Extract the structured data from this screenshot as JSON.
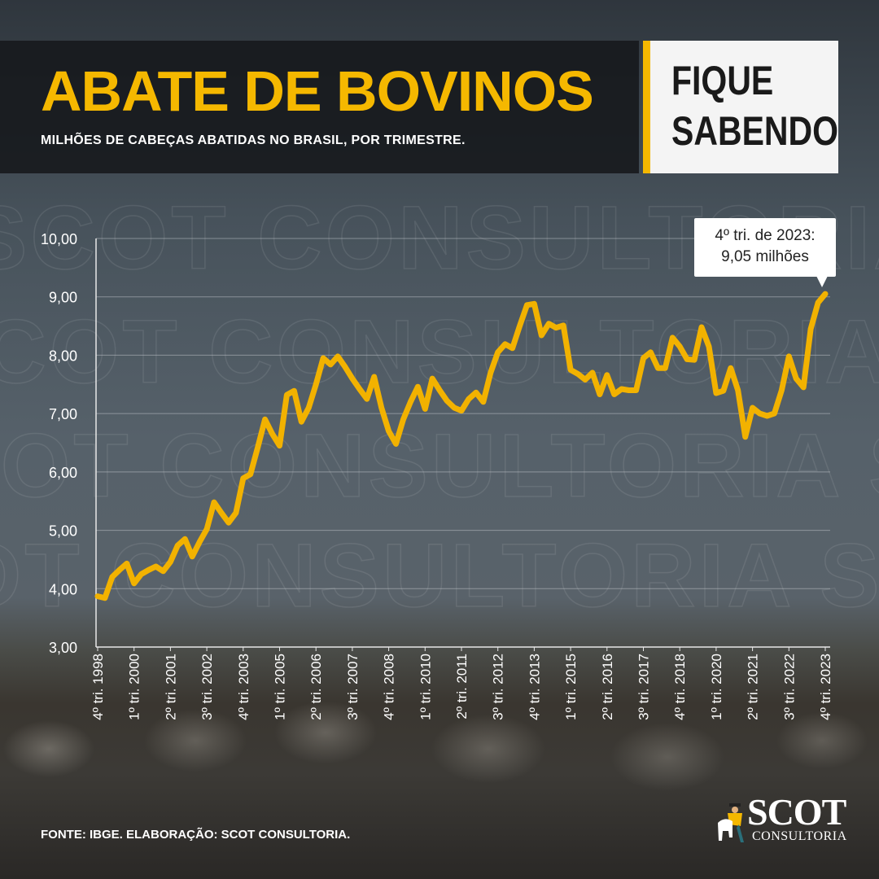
{
  "header": {
    "title": "ABATE DE BOVINOS",
    "subtitle": "MILHÕES DE CABEÇAS ABATIDAS NO BRASIL, POR TRIMESTRE.",
    "badge_line1": "FIQUE",
    "badge_line2": "SABENDO"
  },
  "annotation": {
    "line1": "4º tri. de 2023:",
    "line2": "9,05 milhões"
  },
  "footer": {
    "source": "FONTE: IBGE. ELABORAÇÃO: SCOT CONSULTORIA."
  },
  "logo": {
    "text": "SCOT",
    "subtext": "CONSULTORIA"
  },
  "watermark": "SCOT CONSULTORIA",
  "colors": {
    "accent": "#f5b800",
    "line": "#f2b200",
    "grid": "#9aa2a8",
    "text": "#ffffff"
  },
  "chart_data": {
    "type": "line",
    "title": "ABATE DE BOVINOS",
    "subtitle": "MILHÕES DE CABEÇAS ABATIDAS NO BRASIL, POR TRIMESTRE.",
    "ylim": [
      3,
      10
    ],
    "y_ticks": [
      "3,00",
      "4,00",
      "5,00",
      "6,00",
      "7,00",
      "8,00",
      "9,00",
      "10,00"
    ],
    "grid": true,
    "x_tick_labels": [
      "4º tri. 1998",
      "1º tri. 2000",
      "2º tri. 2001",
      "3º tri. 2002",
      "4º tri. 2003",
      "1º tri. 2005",
      "2º tri. 2006",
      "3º tri. 2007",
      "4º tri. 2008",
      "1º tri. 2010",
      "2º tri. 2011",
      "3º tri. 2012",
      "4º tri. 2013",
      "1º tri. 2015",
      "2º tri. 2016",
      "3º tri. 2017",
      "4º tri. 2018",
      "1º tri. 2020",
      "2º tri. 2021",
      "3º tri. 2022",
      "4º tri. 2023"
    ],
    "x_start": "4º tri. 1998",
    "x_end": "4º tri. 2023",
    "values": [
      3.87,
      3.84,
      4.2,
      4.32,
      4.43,
      4.09,
      4.25,
      4.32,
      4.38,
      4.3,
      4.46,
      4.74,
      4.85,
      4.55,
      4.8,
      5.02,
      5.48,
      5.3,
      5.13,
      5.3,
      5.89,
      5.96,
      6.42,
      6.9,
      6.65,
      6.45,
      7.32,
      7.39,
      6.86,
      7.1,
      7.5,
      7.95,
      7.84,
      7.98,
      7.8,
      7.6,
      7.42,
      7.25,
      7.63,
      7.1,
      6.7,
      6.48,
      6.9,
      7.2,
      7.46,
      7.08,
      7.6,
      7.4,
      7.22,
      7.1,
      7.05,
      7.25,
      7.36,
      7.2,
      7.7,
      8.05,
      8.19,
      8.12,
      8.5,
      8.86,
      8.88,
      8.34,
      8.54,
      8.47,
      8.51,
      7.75,
      7.68,
      7.58,
      7.7,
      7.33,
      7.66,
      7.33,
      7.42,
      7.4,
      7.4,
      7.95,
      8.05,
      7.78,
      7.78,
      8.3,
      8.15,
      7.93,
      7.92,
      8.48,
      8.15,
      7.35,
      7.39,
      7.78,
      7.4,
      6.6,
      7.1,
      7.0,
      6.96,
      7.0,
      7.4,
      7.98,
      7.6,
      7.45,
      8.45,
      8.9,
      9.05
    ]
  }
}
